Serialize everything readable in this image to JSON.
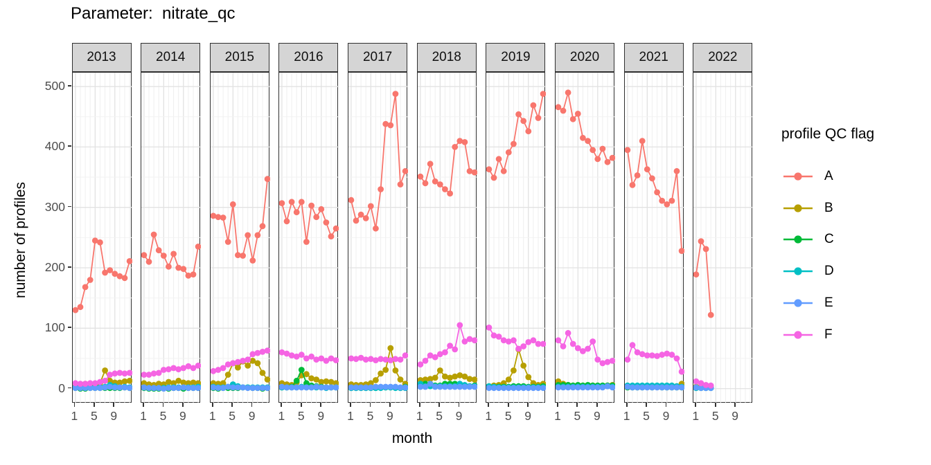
{
  "title": "Parameter:  nitrate_qc",
  "chart_data": {
    "type": "line",
    "title": "Parameter:  nitrate_qc",
    "xlabel": "month",
    "ylabel": "number of profiles",
    "legend_title": "profile QC flag",
    "legend_position": "right",
    "grid": true,
    "x_tick_months": [
      1,
      5,
      9
    ],
    "x_tick_labels": [
      "1",
      "5",
      "9"
    ],
    "y_ticks": [
      0,
      100,
      200,
      300,
      400,
      500
    ],
    "ylim": [
      0,
      500
    ],
    "series_order": [
      "A",
      "B",
      "C",
      "D",
      "E",
      "F"
    ],
    "colors": {
      "A": "#F8766D",
      "B": "#B79F00",
      "C": "#00BA38",
      "D": "#00BFC4",
      "E": "#619CFF",
      "F": "#F564E3"
    },
    "facets": [
      {
        "year": "2013",
        "series": {
          "A": [
            130,
            135,
            168,
            180,
            245,
            242,
            192,
            196,
            190,
            186,
            183,
            211
          ],
          "B": [
            3,
            6,
            8,
            8,
            7,
            9,
            30,
            13,
            10,
            10,
            12,
            13
          ],
          "C": [
            1,
            0,
            0,
            1,
            1,
            1,
            1,
            1,
            1,
            1,
            2,
            1
          ],
          "D": [
            2,
            2,
            1,
            2,
            2,
            2,
            3,
            6,
            4,
            2,
            3,
            2
          ],
          "E": [
            1,
            1,
            1,
            1,
            1,
            1,
            2,
            3,
            2,
            2,
            2,
            1
          ],
          "F": [
            9,
            8,
            8,
            9,
            9,
            11,
            13,
            23,
            25,
            26,
            25,
            26
          ]
        }
      },
      {
        "year": "2014",
        "series": {
          "A": [
            221,
            210,
            255,
            229,
            220,
            202,
            223,
            200,
            198,
            187,
            189,
            235
          ],
          "B": [
            9,
            7,
            6,
            8,
            7,
            11,
            9,
            13,
            10,
            9,
            10,
            9
          ],
          "C": [
            1,
            0,
            0,
            0,
            1,
            0,
            1,
            1,
            0,
            1,
            1,
            1
          ],
          "D": [
            2,
            1,
            1,
            1,
            1,
            2,
            2,
            2,
            2,
            2,
            2,
            3
          ],
          "E": [
            2,
            1,
            1,
            1,
            0,
            1,
            1,
            1,
            2,
            1,
            1,
            1
          ],
          "F": [
            23,
            23,
            25,
            26,
            31,
            32,
            34,
            32,
            34,
            37,
            34,
            38
          ]
        }
      },
      {
        "year": "2015",
        "series": {
          "A": [
            286,
            284,
            283,
            243,
            305,
            221,
            220,
            254,
            212,
            254,
            269,
            347
          ],
          "B": [
            9,
            8,
            9,
            23,
            42,
            35,
            45,
            38,
            46,
            42,
            26,
            15
          ],
          "C": [
            1,
            0,
            1,
            1,
            1,
            1,
            2,
            2,
            1,
            1,
            0,
            1
          ],
          "D": [
            3,
            2,
            2,
            3,
            7,
            4,
            2,
            2,
            2,
            2,
            2,
            2
          ],
          "E": [
            2,
            1,
            1,
            3,
            2,
            2,
            2,
            1,
            1,
            1,
            1,
            1
          ],
          "F": [
            29,
            31,
            34,
            40,
            42,
            44,
            46,
            48,
            57,
            59,
            61,
            63
          ]
        }
      },
      {
        "year": "2016",
        "series": {
          "A": [
            307,
            277,
            309,
            292,
            309,
            243,
            303,
            284,
            297,
            275,
            252,
            265
          ],
          "B": [
            9,
            7,
            6,
            10,
            22,
            24,
            17,
            15,
            11,
            12,
            11,
            9
          ],
          "C": [
            2,
            2,
            3,
            13,
            31,
            9,
            5,
            4,
            3,
            2,
            2,
            2
          ],
          "D": [
            2,
            2,
            2,
            2,
            3,
            2,
            2,
            2,
            2,
            1,
            2,
            2
          ],
          "E": [
            3,
            2,
            2,
            2,
            2,
            2,
            2,
            3,
            2,
            2,
            2,
            2
          ],
          "F": [
            60,
            58,
            55,
            53,
            56,
            50,
            53,
            48,
            50,
            46,
            50,
            47
          ]
        }
      },
      {
        "year": "2017",
        "series": {
          "A": [
            312,
            278,
            288,
            282,
            302,
            265,
            330,
            438,
            436,
            488,
            338,
            360
          ],
          "B": [
            7,
            6,
            6,
            7,
            9,
            14,
            25,
            31,
            67,
            30,
            15,
            8
          ],
          "C": [
            1,
            1,
            1,
            1,
            1,
            1,
            2,
            2,
            2,
            2,
            1,
            3
          ],
          "D": [
            1,
            1,
            1,
            1,
            1,
            1,
            1,
            2,
            2,
            1,
            1,
            1
          ],
          "E": [
            2,
            2,
            2,
            2,
            2,
            3,
            3,
            3,
            3,
            3,
            2,
            2
          ],
          "F": [
            50,
            49,
            51,
            48,
            49,
            47,
            49,
            48,
            47,
            49,
            48,
            55
          ]
        }
      },
      {
        "year": "2018",
        "series": {
          "A": [
            351,
            340,
            372,
            343,
            338,
            330,
            323,
            400,
            410,
            408,
            360,
            358
          ],
          "B": [
            14,
            15,
            16,
            18,
            30,
            20,
            18,
            20,
            22,
            20,
            16,
            15
          ],
          "C": [
            5,
            8,
            8,
            5,
            5,
            8,
            8,
            8,
            5,
            4,
            4,
            5
          ],
          "D": [
            8,
            4,
            4,
            4,
            4,
            4,
            4,
            4,
            8,
            6,
            4,
            4
          ],
          "E": [
            3,
            3,
            8,
            3,
            3,
            3,
            3,
            3,
            3,
            3,
            3,
            3
          ],
          "F": [
            40,
            46,
            55,
            52,
            57,
            60,
            71,
            65,
            105,
            78,
            82,
            80
          ]
        }
      },
      {
        "year": "2019",
        "series": {
          "A": [
            363,
            349,
            380,
            360,
            391,
            405,
            454,
            443,
            426,
            469,
            448,
            488
          ],
          "B": [
            4,
            5,
            6,
            9,
            15,
            30,
            65,
            38,
            19,
            9,
            6,
            8
          ],
          "C": [
            3,
            3,
            3,
            3,
            3,
            4,
            4,
            4,
            3,
            3,
            3,
            4
          ],
          "D": [
            4,
            3,
            2,
            2,
            2,
            2,
            2,
            2,
            2,
            2,
            2,
            2
          ],
          "E": [
            1,
            1,
            1,
            1,
            1,
            1,
            1,
            1,
            1,
            1,
            1,
            1
          ],
          "F": [
            101,
            88,
            86,
            80,
            78,
            80,
            66,
            70,
            77,
            80,
            74,
            74
          ]
        }
      },
      {
        "year": "2020",
        "series": {
          "A": [
            466,
            460,
            490,
            446,
            455,
            415,
            410,
            395,
            380,
            397,
            375,
            382
          ],
          "B": [
            12,
            8,
            6,
            5,
            5,
            5,
            5,
            5,
            4,
            4,
            5,
            6
          ],
          "C": [
            6,
            6,
            6,
            5,
            6,
            5,
            6,
            5,
            5,
            5,
            5,
            5
          ],
          "D": [
            3,
            3,
            3,
            3,
            3,
            3,
            3,
            3,
            3,
            3,
            4,
            3
          ],
          "E": [
            2,
            2,
            2,
            2,
            2,
            2,
            2,
            2,
            2,
            2,
            4,
            2
          ],
          "F": [
            80,
            70,
            92,
            74,
            67,
            62,
            66,
            78,
            48,
            42,
            44,
            46
          ]
        }
      },
      {
        "year": "2021",
        "series": {
          "A": [
            395,
            337,
            353,
            410,
            363,
            348,
            325,
            311,
            305,
            311,
            360,
            228
          ],
          "B": [
            3,
            3,
            3,
            3,
            3,
            3,
            3,
            3,
            3,
            3,
            4,
            8
          ],
          "C": [
            2,
            2,
            2,
            2,
            3,
            2,
            3,
            2,
            2,
            2,
            2,
            2
          ],
          "D": [
            5,
            5,
            5,
            5,
            5,
            5,
            5,
            5,
            5,
            5,
            4,
            3
          ],
          "E": [
            3,
            2,
            2,
            2,
            2,
            2,
            2,
            2,
            2,
            2,
            2,
            2
          ],
          "F": [
            48,
            72,
            60,
            57,
            55,
            55,
            54,
            56,
            58,
            56,
            50,
            28
          ]
        }
      },
      {
        "year": "2022",
        "series": {
          "A": [
            189,
            244,
            231,
            122
          ],
          "B": [
            3,
            3,
            2,
            2
          ],
          "C": [
            1,
            1,
            1,
            1
          ],
          "D": [
            1,
            1,
            1,
            1
          ],
          "E": [
            2,
            1,
            1,
            1
          ],
          "F": [
            12,
            9,
            6,
            5
          ]
        }
      }
    ]
  }
}
